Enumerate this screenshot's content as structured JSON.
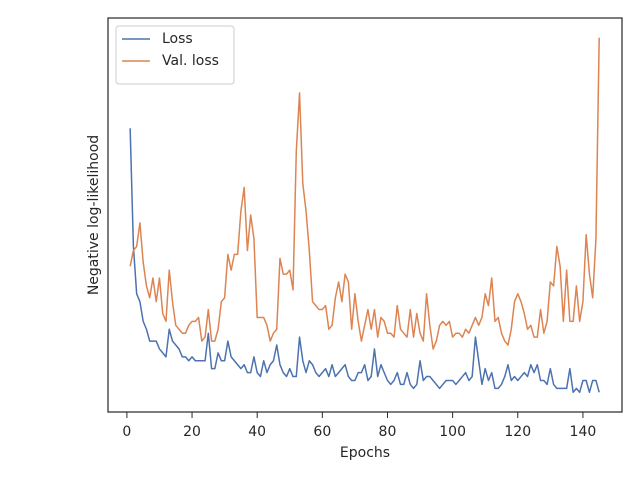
{
  "chart_data": {
    "type": "line",
    "xlabel": "Epochs",
    "ylabel": "Negative log-likelihood",
    "x": [
      1,
      2,
      3,
      4,
      5,
      6,
      7,
      8,
      9,
      10,
      11,
      12,
      13,
      14,
      15,
      16,
      17,
      18,
      19,
      20,
      21,
      22,
      23,
      24,
      25,
      26,
      27,
      28,
      29,
      30,
      31,
      32,
      33,
      34,
      35,
      36,
      37,
      38,
      39,
      40,
      41,
      42,
      43,
      44,
      45,
      46,
      47,
      48,
      49,
      50,
      51,
      52,
      53,
      54,
      55,
      56,
      57,
      58,
      59,
      60,
      61,
      62,
      63,
      64,
      65,
      66,
      67,
      68,
      69,
      70,
      71,
      72,
      73,
      74,
      75,
      76,
      77,
      78,
      79,
      80,
      81,
      82,
      83,
      84,
      85,
      86,
      87,
      88,
      89,
      90,
      91,
      92,
      93,
      94,
      95,
      96,
      97,
      98,
      99,
      100,
      101,
      102,
      103,
      104,
      105,
      106,
      107,
      108,
      109,
      110,
      111,
      112,
      113,
      114,
      115,
      116,
      117,
      118,
      119,
      120,
      121,
      122,
      123,
      124,
      125,
      126,
      127,
      128,
      129,
      130,
      131,
      132,
      133,
      134,
      135,
      136,
      137,
      138,
      139,
      140,
      141,
      142,
      143,
      144,
      145
    ],
    "series": [
      {
        "name": "Loss",
        "color": "#4c72b0",
        "values": [
          72,
          42,
          30,
          28,
          23,
          21,
          18,
          18,
          18,
          16,
          15,
          14,
          21,
          18,
          17,
          16,
          14,
          14,
          13,
          14,
          13,
          13,
          13,
          13,
          20,
          11,
          11,
          15,
          13,
          13,
          18,
          14,
          13,
          12,
          11,
          12,
          10,
          10,
          14,
          10,
          9,
          13,
          10,
          12,
          13,
          17,
          12,
          10,
          9,
          11,
          9,
          9,
          19,
          13,
          10,
          13,
          12,
          10,
          9,
          10,
          11,
          9,
          12,
          9,
          10,
          11,
          12,
          9,
          8,
          8,
          10,
          10,
          12,
          8,
          9,
          16,
          9,
          12,
          10,
          8,
          7,
          8,
          10,
          7,
          7,
          10,
          7,
          6,
          7,
          13,
          8,
          9,
          9,
          8,
          7,
          6,
          7,
          8,
          8,
          8,
          7,
          8,
          9,
          10,
          8,
          9,
          19,
          13,
          7,
          11,
          8,
          10,
          6,
          6,
          7,
          9,
          12,
          8,
          9,
          8,
          9,
          10,
          9,
          12,
          10,
          12,
          8,
          8,
          7,
          11,
          7,
          6,
          6,
          6,
          6,
          11,
          5,
          6,
          5,
          8,
          8,
          5,
          8,
          8,
          5
        ]
      },
      {
        "name": "Val. loss",
        "color": "#dd8452",
        "values": [
          37,
          41,
          42,
          48,
          38,
          32,
          29,
          34,
          28,
          34,
          25,
          23,
          36,
          28,
          22,
          21,
          20,
          20,
          22,
          23,
          23,
          24,
          18,
          19,
          26,
          18,
          18,
          21,
          28,
          29,
          40,
          36,
          40,
          40,
          51,
          57,
          41,
          50,
          44,
          24,
          24,
          24,
          22,
          18,
          20,
          21,
          39,
          35,
          35,
          36,
          31,
          66,
          81,
          58,
          51,
          41,
          28,
          27,
          26,
          26,
          27,
          21,
          22,
          29,
          33,
          28,
          35,
          33,
          21,
          30,
          23,
          18,
          22,
          26,
          21,
          26,
          19,
          24,
          23,
          20,
          20,
          19,
          27,
          21,
          20,
          19,
          26,
          19,
          25,
          20,
          18,
          30,
          22,
          16,
          18,
          22,
          23,
          22,
          23,
          19,
          20,
          20,
          19,
          21,
          20,
          22,
          24,
          22,
          24,
          30,
          27,
          34,
          23,
          24,
          20,
          18,
          17,
          21,
          28,
          30,
          28,
          25,
          21,
          22,
          19,
          19,
          26,
          20,
          23,
          33,
          32,
          42,
          37,
          23,
          36,
          23,
          23,
          32,
          23,
          28,
          45,
          35,
          29,
          44,
          95
        ]
      }
    ],
    "xlim": [
      -5.8,
      152
    ],
    "ylim": [
      0,
      100
    ],
    "xticks": [
      0,
      20,
      40,
      60,
      80,
      100,
      120,
      140
    ],
    "legend": "upper left"
  }
}
